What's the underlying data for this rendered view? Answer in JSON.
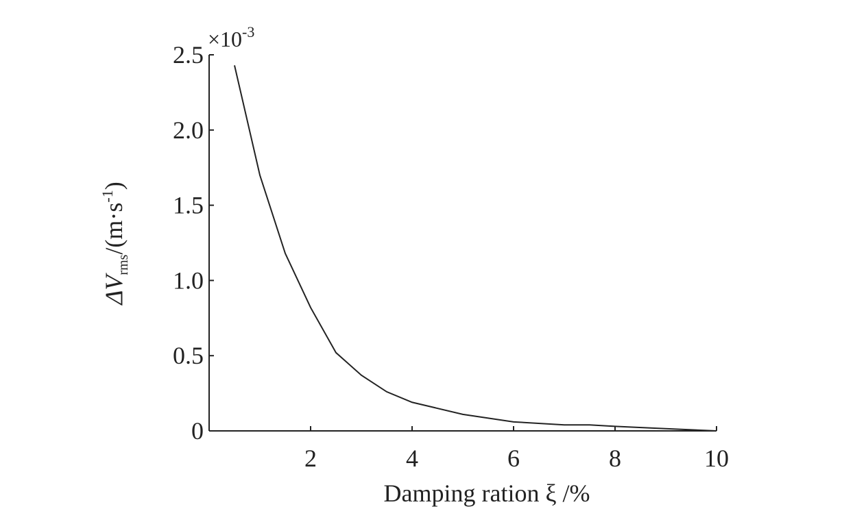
{
  "chart_data": {
    "type": "line",
    "y_label": {
      "symbol": "ΔV",
      "subscript": "rms",
      "unit": "/(m·s",
      "unit_exponent": "-1",
      "unit_close": ")"
    },
    "x_label": "Damping ration ξ /%",
    "y_multiplier": {
      "base": "×10",
      "exponent": "-3"
    },
    "x": [
      0.5,
      1,
      1.5,
      2,
      2.5,
      3,
      3.5,
      4,
      5,
      6,
      7,
      7.5,
      8,
      9,
      10
    ],
    "series": [
      {
        "color": "#222222",
        "values": [
          2.43,
          1.7,
          1.18,
          0.82,
          0.52,
          0.37,
          0.26,
          0.19,
          0.11,
          0.06,
          0.04,
          0.04,
          0.03,
          0.015,
          0.0
        ]
      }
    ],
    "xlim": [
      0,
      10
    ],
    "xticks": [
      2,
      4,
      6,
      8,
      10
    ],
    "ylim": [
      0,
      2.5
    ],
    "yticks": [
      0,
      0.5,
      {
        "value": 1,
        "label": "1.0"
      },
      1.5,
      {
        "value": 2,
        "label": "2.0"
      },
      2.5
    ],
    "grid": false
  }
}
